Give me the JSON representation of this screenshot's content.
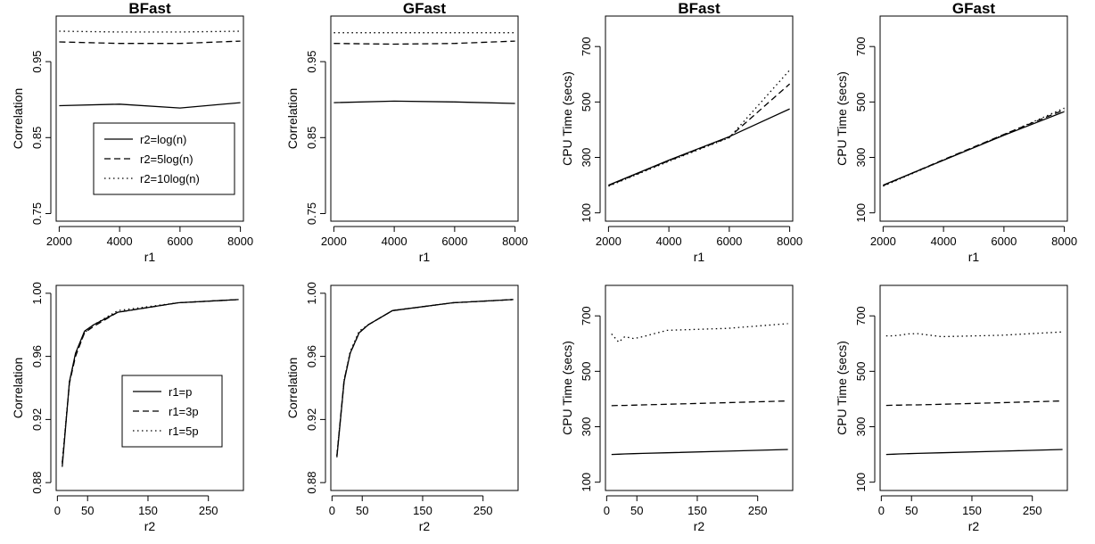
{
  "chart_data": [
    {
      "type": "line",
      "title": "BFast",
      "xlabel": "r1",
      "ylabel": "Correlation",
      "xlim": [
        1900,
        8100
      ],
      "ylim": [
        0.74,
        1.01
      ],
      "xticks": [
        2000,
        4000,
        6000,
        8000
      ],
      "yticks": [
        0.75,
        0.85,
        0.95
      ],
      "grid": false,
      "x": [
        2000,
        4000,
        6000,
        8000
      ],
      "series": [
        {
          "name": "r2=log(n)",
          "dash": "solid",
          "values": [
            0.892,
            0.894,
            0.889,
            0.896
          ]
        },
        {
          "name": "r2=5log(n)",
          "dash": "dashed",
          "values": [
            0.976,
            0.974,
            0.974,
            0.977
          ]
        },
        {
          "name": "r2=10log(n)",
          "dash": "dotted",
          "values": [
            0.99,
            0.989,
            0.989,
            0.99
          ]
        }
      ],
      "legend": {
        "position": "bottom-center",
        "entries": [
          "r2=log(n)",
          "r2=5log(n)",
          "r2=10log(n)"
        ]
      }
    },
    {
      "type": "line",
      "title": "GFast",
      "xlabel": "r1",
      "ylabel": "Correlation",
      "xlim": [
        1900,
        8100
      ],
      "ylim": [
        0.74,
        1.01
      ],
      "xticks": [
        2000,
        4000,
        6000,
        8000
      ],
      "yticks": [
        0.75,
        0.85,
        0.95
      ],
      "grid": false,
      "x": [
        2000,
        4000,
        6000,
        8000
      ],
      "series": [
        {
          "name": "r2=log(n)",
          "dash": "solid",
          "values": [
            0.896,
            0.898,
            0.897,
            0.895
          ]
        },
        {
          "name": "r2=5log(n)",
          "dash": "dashed",
          "values": [
            0.974,
            0.973,
            0.974,
            0.977
          ]
        },
        {
          "name": "r2=10log(n)",
          "dash": "dotted",
          "values": [
            0.988,
            0.988,
            0.988,
            0.988
          ]
        }
      ]
    },
    {
      "type": "line",
      "title": "BFast",
      "xlabel": "r1",
      "ylabel": "CPU Time (secs)",
      "xlim": [
        1900,
        8100
      ],
      "ylim": [
        70,
        810
      ],
      "xticks": [
        2000,
        4000,
        6000,
        8000
      ],
      "yticks": [
        100,
        300,
        500,
        700
      ],
      "grid": false,
      "x": [
        2000,
        4000,
        6000,
        8000
      ],
      "series": [
        {
          "name": "r2=log(n)",
          "dash": "solid",
          "values": [
            200,
            290,
            375,
            475
          ]
        },
        {
          "name": "r2=5log(n)",
          "dash": "dashed",
          "values": [
            198,
            288,
            373,
            565
          ]
        },
        {
          "name": "r2=10log(n)",
          "dash": "dotted",
          "values": [
            196,
            286,
            371,
            615
          ]
        }
      ]
    },
    {
      "type": "line",
      "title": "GFast",
      "xlabel": "r1",
      "ylabel": "CPU Time (secs)",
      "xlim": [
        1900,
        8100
      ],
      "ylim": [
        70,
        810
      ],
      "xticks": [
        2000,
        4000,
        6000,
        8000
      ],
      "yticks": [
        100,
        300,
        500,
        700
      ],
      "grid": false,
      "x": [
        2000,
        4000,
        6000,
        8000
      ],
      "series": [
        {
          "name": "r2=log(n)",
          "dash": "solid",
          "values": [
            200,
            290,
            380,
            465
          ]
        },
        {
          "name": "r2=5log(n)",
          "dash": "dashed",
          "values": [
            198,
            292,
            383,
            472
          ]
        },
        {
          "name": "r2=10log(n)",
          "dash": "dotted",
          "values": [
            196,
            290,
            382,
            478
          ]
        }
      ]
    },
    {
      "type": "line",
      "title": "",
      "xlabel": "r2",
      "ylabel": "Correlation",
      "xlim": [
        -2,
        308
      ],
      "ylim": [
        0.875,
        1.005
      ],
      "xticks": [
        0,
        50,
        150,
        250
      ],
      "yticks": [
        0.88,
        0.92,
        0.96,
        1.0
      ],
      "grid": false,
      "x": [
        8,
        20,
        30,
        45,
        60,
        100,
        200,
        300
      ],
      "series": [
        {
          "name": "r1=p",
          "dash": "solid",
          "values": [
            0.89,
            0.944,
            0.962,
            0.976,
            0.98,
            0.988,
            0.994,
            0.996
          ]
        },
        {
          "name": "r1=3p",
          "dash": "dashed",
          "values": [
            0.892,
            0.943,
            0.96,
            0.975,
            0.979,
            0.988,
            0.994,
            0.996
          ]
        },
        {
          "name": "r1=5p",
          "dash": "dotted",
          "values": [
            0.893,
            0.944,
            0.961,
            0.975,
            0.98,
            0.989,
            0.994,
            0.996
          ]
        }
      ],
      "legend": {
        "position": "bottom-right",
        "entries": [
          "r1=p",
          "r1=3p",
          "r1=5p"
        ]
      }
    },
    {
      "type": "line",
      "title": "",
      "xlabel": "r2",
      "ylabel": "Correlation",
      "xlim": [
        -2,
        308
      ],
      "ylim": [
        0.875,
        1.005
      ],
      "xticks": [
        0,
        50,
        150,
        250
      ],
      "yticks": [
        0.88,
        0.92,
        0.96,
        1.0
      ],
      "grid": false,
      "x": [
        8,
        20,
        30,
        45,
        60,
        100,
        200,
        300
      ],
      "series": [
        {
          "name": "r1=p",
          "dash": "solid",
          "values": [
            0.896,
            0.944,
            0.962,
            0.975,
            0.98,
            0.989,
            0.994,
            0.996
          ]
        },
        {
          "name": "r1=3p",
          "dash": "dashed",
          "values": [
            0.897,
            0.945,
            0.962,
            0.975,
            0.98,
            0.989,
            0.994,
            0.996
          ]
        },
        {
          "name": "r1=5p",
          "dash": "dotted",
          "values": [
            0.897,
            0.945,
            0.963,
            0.976,
            0.98,
            0.989,
            0.994,
            0.996
          ]
        }
      ]
    },
    {
      "type": "line",
      "title": "",
      "xlabel": "r2",
      "ylabel": "CPU Time (secs)",
      "xlim": [
        -2,
        308
      ],
      "ylim": [
        70,
        810
      ],
      "xticks": [
        0,
        50,
        150,
        250
      ],
      "yticks": [
        100,
        300,
        500,
        700
      ],
      "grid": false,
      "x": [
        8,
        20,
        30,
        45,
        60,
        100,
        200,
        300
      ],
      "series": [
        {
          "name": "r1=p",
          "dash": "solid",
          "values": [
            200,
            201,
            202,
            203,
            204,
            206,
            212,
            218
          ]
        },
        {
          "name": "r1=3p",
          "dash": "dashed",
          "values": [
            376,
            377,
            377,
            378,
            379,
            381,
            387,
            393
          ]
        },
        {
          "name": "r1=5p",
          "dash": "dotted",
          "values": [
            635,
            605,
            625,
            618,
            625,
            648,
            655,
            672
          ]
        }
      ]
    },
    {
      "type": "line",
      "title": "",
      "xlabel": "r2",
      "ylabel": "CPU Time (secs)",
      "xlim": [
        -2,
        308
      ],
      "ylim": [
        70,
        810
      ],
      "xticks": [
        0,
        50,
        150,
        250
      ],
      "yticks": [
        100,
        300,
        500,
        700
      ],
      "grid": false,
      "x": [
        8,
        20,
        30,
        45,
        60,
        100,
        200,
        300
      ],
      "series": [
        {
          "name": "r1=p",
          "dash": "solid",
          "values": [
            200,
            201,
            202,
            203,
            204,
            206,
            212,
            218
          ]
        },
        {
          "name": "r1=3p",
          "dash": "dashed",
          "values": [
            377,
            378,
            378,
            379,
            379,
            381,
            387,
            393
          ]
        },
        {
          "name": "r1=5p",
          "dash": "dotted",
          "values": [
            628,
            628,
            630,
            635,
            636,
            625,
            630,
            642
          ]
        }
      ]
    }
  ]
}
